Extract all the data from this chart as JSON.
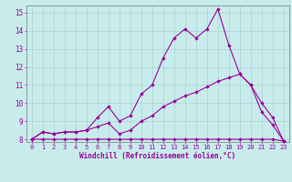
{
  "title": "",
  "xlabel": "Windchill (Refroidissement éolien,°C)",
  "background_color": "#c8ecec",
  "line_color": "#990099",
  "grid_color": "#aad4d4",
  "xlim": [
    -0.5,
    23.5
  ],
  "ylim": [
    7.85,
    15.4
  ],
  "xticks": [
    0,
    1,
    2,
    3,
    4,
    5,
    6,
    7,
    8,
    9,
    10,
    11,
    12,
    13,
    14,
    15,
    16,
    17,
    18,
    19,
    20,
    21,
    22,
    23
  ],
  "yticks": [
    8,
    9,
    10,
    11,
    12,
    13,
    14,
    15
  ],
  "line1_x": [
    0,
    1,
    2,
    3,
    4,
    5,
    6,
    7,
    8,
    9,
    10,
    11,
    12,
    13,
    14,
    15,
    16,
    17,
    18,
    19,
    20,
    21,
    22,
    23
  ],
  "line1_y": [
    8.0,
    8.4,
    8.3,
    8.4,
    8.4,
    8.5,
    9.2,
    9.8,
    9.0,
    9.3,
    10.5,
    11.0,
    12.5,
    13.6,
    14.1,
    13.6,
    14.1,
    15.2,
    13.2,
    11.6,
    11.0,
    9.5,
    8.8,
    7.9
  ],
  "line2_x": [
    0,
    1,
    2,
    3,
    4,
    5,
    6,
    7,
    8,
    9,
    10,
    11,
    12,
    13,
    14,
    15,
    16,
    17,
    18,
    19,
    20,
    21,
    22,
    23
  ],
  "line2_y": [
    8.0,
    8.4,
    8.3,
    8.4,
    8.4,
    8.5,
    8.7,
    8.9,
    8.3,
    8.5,
    9.0,
    9.3,
    9.8,
    10.1,
    10.4,
    10.6,
    10.9,
    11.2,
    11.4,
    11.6,
    11.0,
    10.0,
    9.2,
    7.9
  ],
  "line3_x": [
    0,
    1,
    2,
    3,
    4,
    5,
    6,
    7,
    8,
    9,
    10,
    11,
    12,
    13,
    14,
    15,
    16,
    17,
    18,
    19,
    20,
    21,
    22,
    23
  ],
  "line3_y": [
    8.0,
    8.0,
    8.0,
    8.0,
    8.0,
    8.0,
    8.0,
    8.0,
    8.0,
    8.0,
    8.0,
    8.0,
    8.0,
    8.0,
    8.0,
    8.0,
    8.0,
    8.0,
    8.0,
    8.0,
    8.0,
    8.0,
    8.0,
    7.9
  ],
  "tick_fontsize": 5.0,
  "xlabel_fontsize": 5.5,
  "marker_size": 2.2,
  "linewidth": 0.8
}
